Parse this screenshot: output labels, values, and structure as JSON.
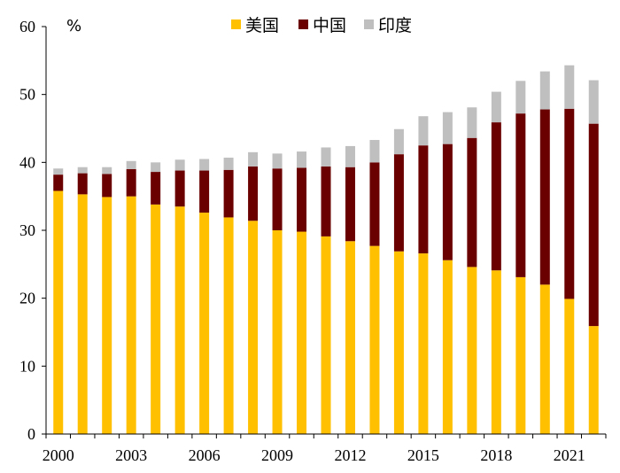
{
  "chart_data": {
    "type": "bar",
    "stacked": true,
    "unit_label": "%",
    "ylim": [
      0,
      60
    ],
    "yticks": [
      0,
      10,
      20,
      30,
      40,
      50,
      60
    ],
    "categories": [
      "2000",
      "2001",
      "2002",
      "2003",
      "2004",
      "2005",
      "2006",
      "2007",
      "2008",
      "2009",
      "2010",
      "2011",
      "2012",
      "2013",
      "2014",
      "2015",
      "2016",
      "2017",
      "2018",
      "2019",
      "2020",
      "2021",
      "2022"
    ],
    "xtick_labels": [
      "2000",
      "2003",
      "2006",
      "2009",
      "2012",
      "2015",
      "2018",
      "2021"
    ],
    "series": [
      {
        "name": "美国",
        "color": "#FFC000",
        "values": [
          35.8,
          35.3,
          34.9,
          35.0,
          33.8,
          33.5,
          32.6,
          31.9,
          31.4,
          30.0,
          29.8,
          29.1,
          28.4,
          27.7,
          26.9,
          26.6,
          25.6,
          24.6,
          24.1,
          23.1,
          22.0,
          19.9,
          15.9
        ]
      },
      {
        "name": "中国",
        "color": "#6B0000",
        "values": [
          2.4,
          3.1,
          3.4,
          4.0,
          4.8,
          5.3,
          6.2,
          7.0,
          8.0,
          9.1,
          9.4,
          10.3,
          10.9,
          12.3,
          14.3,
          15.9,
          17.1,
          19.0,
          21.8,
          24.1,
          25.8,
          28.0,
          29.8
        ]
      },
      {
        "name": "印度",
        "color": "#BFBFBF",
        "values": [
          0.9,
          0.9,
          1.0,
          1.2,
          1.4,
          1.6,
          1.7,
          1.8,
          2.1,
          2.2,
          2.4,
          2.8,
          3.1,
          3.3,
          3.7,
          4.3,
          4.7,
          4.5,
          4.5,
          4.8,
          5.6,
          6.4,
          6.4
        ]
      }
    ]
  }
}
